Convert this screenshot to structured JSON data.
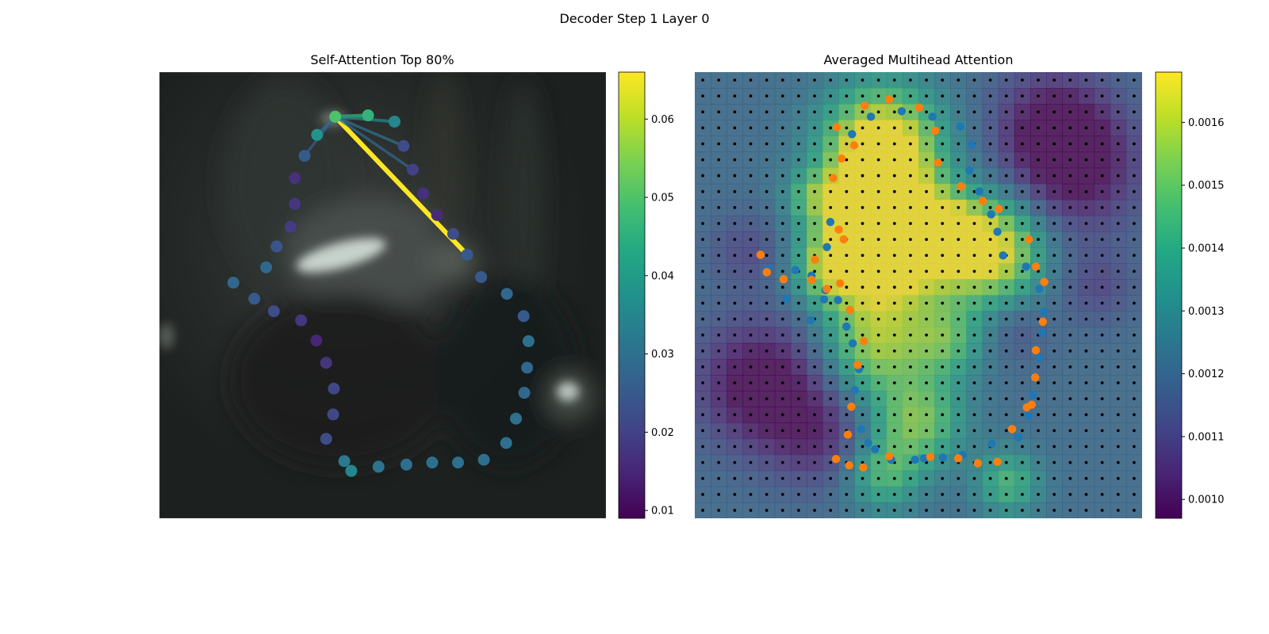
{
  "figure": {
    "title": "Decoder Step 1 Layer 0"
  },
  "colors": {
    "viridis": [
      "#440154",
      "#482475",
      "#414487",
      "#355f8d",
      "#2a788e",
      "#21918c",
      "#22a884",
      "#44bf70",
      "#7ad151",
      "#bddf26",
      "#fde725"
    ],
    "series_blue": "#1f77b4",
    "series_orange": "#ff7f0e",
    "grid_dot": "#000000"
  },
  "chart_data": [
    {
      "type": "scatter",
      "title": "Self-Attention Top 80%",
      "xlim": [
        0,
        640
      ],
      "ylim": [
        640,
        0
      ],
      "colorbar": {
        "range": [
          0.009,
          0.066
        ],
        "ticks": [
          0.01,
          0.02,
          0.03,
          0.04,
          0.05,
          0.06
        ],
        "tick_labels": [
          "0.01",
          "0.02",
          "0.03",
          "0.04",
          "0.05",
          "0.06"
        ]
      },
      "query_point": {
        "x": 252,
        "y": 64,
        "value": 0.05
      },
      "points": [
        {
          "x": 252,
          "y": 64,
          "value": 0.05
        },
        {
          "x": 299,
          "y": 62,
          "value": 0.046
        },
        {
          "x": 337,
          "y": 71,
          "value": 0.035
        },
        {
          "x": 350,
          "y": 106,
          "value": 0.022
        },
        {
          "x": 363,
          "y": 140,
          "value": 0.02
        },
        {
          "x": 378,
          "y": 174,
          "value": 0.017
        },
        {
          "x": 398,
          "y": 205,
          "value": 0.016
        },
        {
          "x": 421,
          "y": 232,
          "value": 0.022
        },
        {
          "x": 441,
          "y": 262,
          "value": 0.025
        },
        {
          "x": 461,
          "y": 294,
          "value": 0.025
        },
        {
          "x": 498,
          "y": 318,
          "value": 0.028
        },
        {
          "x": 522,
          "y": 350,
          "value": 0.025
        },
        {
          "x": 529,
          "y": 386,
          "value": 0.03
        },
        {
          "x": 527,
          "y": 424,
          "value": 0.028
        },
        {
          "x": 523,
          "y": 460,
          "value": 0.028
        },
        {
          "x": 511,
          "y": 497,
          "value": 0.03
        },
        {
          "x": 497,
          "y": 532,
          "value": 0.03
        },
        {
          "x": 465,
          "y": 556,
          "value": 0.03
        },
        {
          "x": 428,
          "y": 560,
          "value": 0.03
        },
        {
          "x": 391,
          "y": 560,
          "value": 0.03
        },
        {
          "x": 354,
          "y": 563,
          "value": 0.03
        },
        {
          "x": 314,
          "y": 566,
          "value": 0.031
        },
        {
          "x": 275,
          "y": 572,
          "value": 0.035
        },
        {
          "x": 265,
          "y": 558,
          "value": 0.032
        },
        {
          "x": 239,
          "y": 526,
          "value": 0.022
        },
        {
          "x": 249,
          "y": 491,
          "value": 0.021
        },
        {
          "x": 250,
          "y": 454,
          "value": 0.021
        },
        {
          "x": 239,
          "y": 417,
          "value": 0.018
        },
        {
          "x": 225,
          "y": 385,
          "value": 0.015
        },
        {
          "x": 203,
          "y": 356,
          "value": 0.018
        },
        {
          "x": 164,
          "y": 343,
          "value": 0.022
        },
        {
          "x": 136,
          "y": 325,
          "value": 0.025
        },
        {
          "x": 106,
          "y": 302,
          "value": 0.028
        },
        {
          "x": 153,
          "y": 280,
          "value": 0.028
        },
        {
          "x": 168,
          "y": 250,
          "value": 0.024
        },
        {
          "x": 188,
          "y": 222,
          "value": 0.019
        },
        {
          "x": 194,
          "y": 189,
          "value": 0.018
        },
        {
          "x": 194,
          "y": 152,
          "value": 0.017
        },
        {
          "x": 208,
          "y": 120,
          "value": 0.025
        },
        {
          "x": 226,
          "y": 90,
          "value": 0.038
        }
      ],
      "edges": [
        {
          "to": 8,
          "value": 0.066
        },
        {
          "to": 1,
          "value": 0.046
        },
        {
          "to": 2,
          "value": 0.035
        },
        {
          "to": 3,
          "value": 0.03
        },
        {
          "to": 4,
          "value": 0.028
        },
        {
          "to": 38,
          "value": 0.026
        },
        {
          "to": 39,
          "value": 0.03
        }
      ]
    },
    {
      "type": "heatmap",
      "title": "Averaged Multihead Attention",
      "xlim": [
        0,
        640
      ],
      "ylim": [
        640,
        0
      ],
      "grid": {
        "nx": 28,
        "ny": 28
      },
      "colorbar": {
        "range": [
          0.00097,
          0.00168
        ],
        "ticks": [
          0.001,
          0.0011,
          0.0012,
          0.0013,
          0.0014,
          0.0015,
          0.0016
        ],
        "tick_labels": [
          "0.0010",
          "0.0011",
          "0.0012",
          "0.0013",
          "0.0014",
          "0.0015",
          "0.0016"
        ]
      },
      "sampling_points": "every grid cell center",
      "series": [
        {
          "color_key": "series_blue",
          "points": [
            [
              252,
              64
            ],
            [
              296,
              56
            ],
            [
              340,
              64
            ],
            [
              380,
              78
            ],
            [
              396,
              104
            ],
            [
              393,
              141
            ],
            [
              407,
              171
            ],
            [
              424,
              204
            ],
            [
              433,
              229
            ],
            [
              441,
              263
            ],
            [
              474,
              279
            ],
            [
              493,
              311
            ],
            [
              499,
              344
            ],
            [
              497,
              374
            ],
            [
              493,
              410
            ],
            [
              484,
              463
            ],
            [
              478,
              493
            ],
            [
              463,
              524
            ],
            [
              425,
              533
            ],
            [
              383,
              549
            ],
            [
              355,
              553
            ],
            [
              328,
              554
            ],
            [
              315,
              556
            ],
            [
              281,
              556
            ],
            [
              258,
              541
            ],
            [
              248,
              532
            ],
            [
              238,
              512
            ],
            [
              229,
              456
            ],
            [
              235,
              426
            ],
            [
              226,
              389
            ],
            [
              217,
              365
            ],
            [
              205,
              327
            ],
            [
              187,
              313
            ],
            [
              167,
              292
            ],
            [
              144,
              284
            ],
            [
              105,
              282
            ],
            [
              131,
              325
            ],
            [
              166,
              356
            ],
            [
              185,
              326
            ],
            [
              189,
              251
            ],
            [
              194,
              215
            ],
            [
              225,
              89
            ]
          ]
        },
        {
          "color_key": "series_orange",
          "points": [
            [
              243,
              48
            ],
            [
              278,
              39
            ],
            [
              321,
              51
            ],
            [
              344,
              84
            ],
            [
              348,
              130
            ],
            [
              381,
              164
            ],
            [
              412,
              185
            ],
            [
              435,
              196
            ],
            [
              478,
              240
            ],
            [
              488,
              279
            ],
            [
              500,
              301
            ],
            [
              498,
              358
            ],
            [
              488,
              399
            ],
            [
              487,
              438
            ],
            [
              482,
              477
            ],
            [
              475,
              481
            ],
            [
              454,
              512
            ],
            [
              433,
              559
            ],
            [
              405,
              561
            ],
            [
              377,
              554
            ],
            [
              337,
              552
            ],
            [
              278,
              551
            ],
            [
              241,
              567
            ],
            [
              221,
              564
            ],
            [
              202,
              555
            ],
            [
              219,
              520
            ],
            [
              224,
              480
            ],
            [
              233,
              420
            ],
            [
              242,
              386
            ],
            [
              222,
              341
            ],
            [
              189,
              311
            ],
            [
              167,
              298
            ],
            [
              127,
              297
            ],
            [
              103,
              287
            ],
            [
              94,
              262
            ],
            [
              172,
              269
            ],
            [
              208,
              303
            ],
            [
              213,
              240
            ],
            [
              206,
              226
            ],
            [
              198,
              152
            ],
            [
              210,
              124
            ],
            [
              228,
              105
            ],
            [
              203,
              79
            ]
          ]
        }
      ]
    }
  ]
}
